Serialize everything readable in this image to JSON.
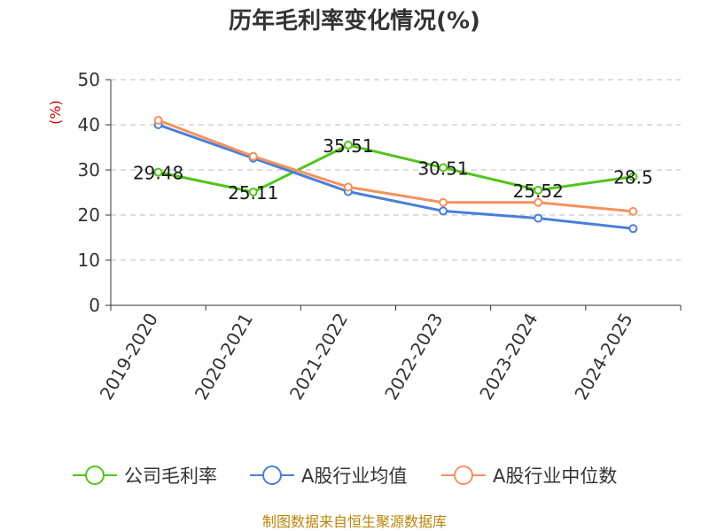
{
  "chart_data": {
    "type": "line",
    "title": "历年毛利率变化情况(%)",
    "ylabel": "(%)",
    "xlabel": "",
    "ylim": [
      0,
      50
    ],
    "yticks": [
      0,
      10,
      20,
      30,
      40,
      50
    ],
    "grid": true,
    "legend_position": "bottom",
    "categories": [
      "2019-2020",
      "2020-2021",
      "2021-2022",
      "2022-2023",
      "2023-2024",
      "2024-2025"
    ],
    "series": [
      {
        "name": "公司毛利率",
        "color": "#52c41a",
        "values": [
          29.48,
          25.11,
          35.51,
          30.51,
          25.52,
          28.5
        ],
        "labels": [
          "29.48",
          "25.11",
          "35.51",
          "30.51",
          "25.52",
          "28.5"
        ]
      },
      {
        "name": "A股行业均值",
        "color": "#4a7fd6",
        "values": [
          40.0,
          32.6,
          25.2,
          20.9,
          19.3,
          17.0
        ]
      },
      {
        "name": "A股行业中位数",
        "color": "#f4925e",
        "values": [
          41.0,
          33.0,
          26.2,
          22.8,
          22.8,
          20.8
        ]
      }
    ]
  },
  "source_text": "制图数据来自恒生聚源数据库"
}
